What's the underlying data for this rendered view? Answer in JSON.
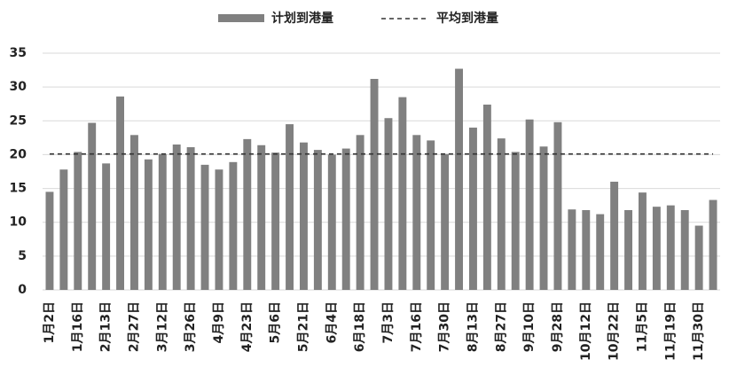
{
  "chart_data": {
    "type": "bar",
    "categories": [
      "1月2日",
      null,
      "1月16日",
      null,
      "2月13日",
      null,
      "2月27日",
      null,
      "3月12日",
      null,
      "3月26日",
      null,
      "4月9日",
      null,
      "4月23日",
      null,
      "5月6日",
      null,
      "5月21日",
      null,
      "6月4日",
      null,
      "6月18日",
      null,
      "7月3日",
      null,
      "7月16日",
      null,
      "7月30日",
      null,
      "8月13日",
      null,
      "8月27日",
      null,
      "9月10日",
      null,
      "9月28日",
      null,
      "10月12日",
      null,
      "10月22日",
      null,
      "11月5日",
      null,
      "11月19日",
      null,
      "11月30日",
      null
    ],
    "series": [
      {
        "name": "计划到港量",
        "color": "#808080",
        "values": [
          14.5,
          17.8,
          20.4,
          24.7,
          18.7,
          28.6,
          22.9,
          19.3,
          20.1,
          21.5,
          21.1,
          18.5,
          17.8,
          18.9,
          22.3,
          21.4,
          20.3,
          24.5,
          21.8,
          20.7,
          20.0,
          20.9,
          22.9,
          31.2,
          25.4,
          28.5,
          22.9,
          22.1,
          20.1,
          32.7,
          24.0,
          27.4,
          22.4,
          20.4,
          25.2,
          21.2,
          24.8,
          11.9,
          11.8,
          11.2,
          16.0,
          11.8,
          14.4,
          12.3,
          12.5,
          11.8,
          9.5,
          13.3
        ]
      },
      {
        "name": "平均到港量",
        "color": "#333333",
        "line_style": "dashed",
        "values": [
          20.1,
          20.1,
          20.1,
          20.1,
          20.1,
          20.1,
          20.1,
          20.1,
          20.1,
          20.1,
          20.1,
          20.1,
          20.1,
          20.1,
          20.1,
          20.1,
          20.1,
          20.1,
          20.1,
          20.1,
          20.1,
          20.1,
          20.1,
          20.1,
          20.1,
          20.1,
          20.1,
          20.1,
          20.1,
          20.1,
          20.1,
          20.1,
          20.1,
          20.1,
          20.1,
          20.1,
          20.1,
          20.1,
          20.1,
          20.1,
          20.1,
          20.1,
          20.1,
          20.1,
          20.1,
          20.1,
          20.1,
          20.1
        ]
      }
    ],
    "ylim": [
      0,
      35
    ],
    "yticks": [
      0,
      5,
      10,
      15,
      20,
      25,
      30,
      35
    ],
    "grid": true
  }
}
